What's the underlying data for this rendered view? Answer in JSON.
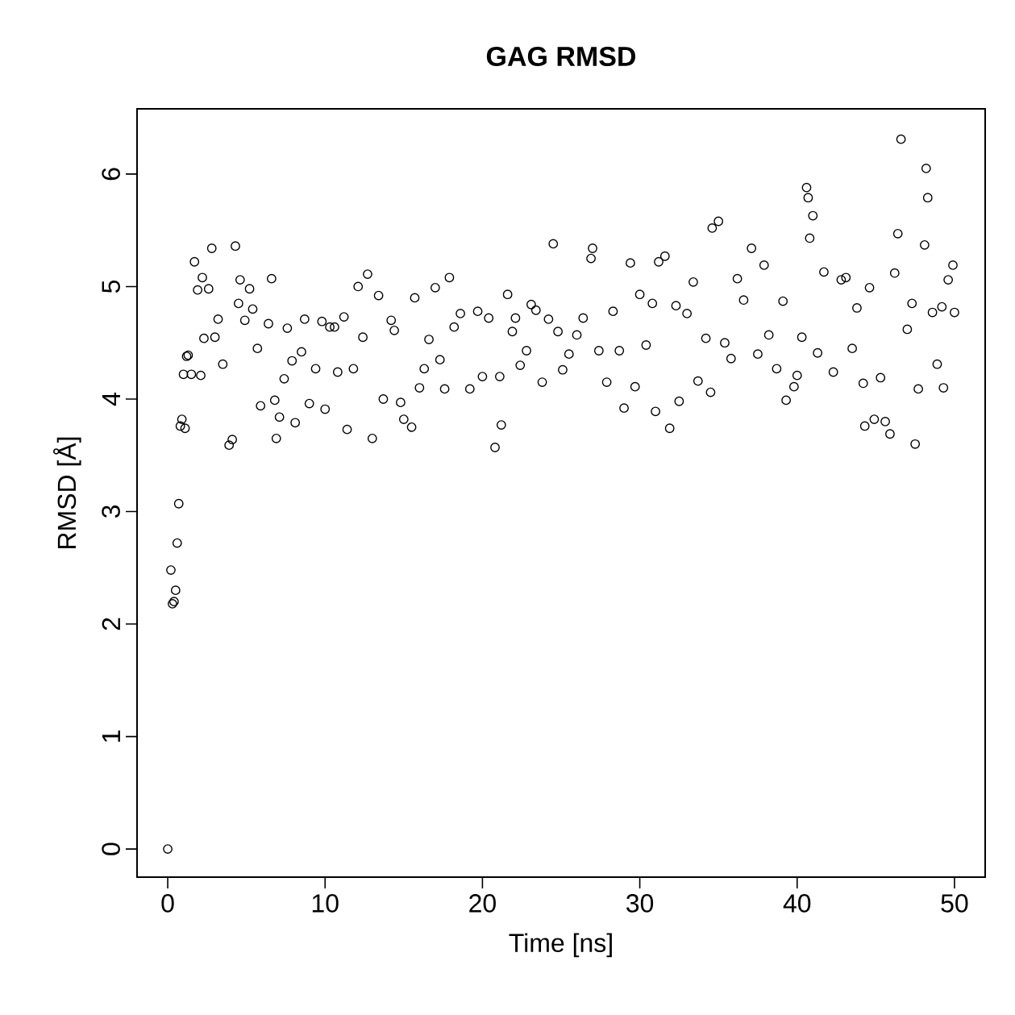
{
  "chart_data": {
    "type": "scatter",
    "title": "GAG RMSD",
    "xlabel": "Time [ns]",
    "ylabel": "RMSD [Å]",
    "xlim": [
      -1.95,
      51.95
    ],
    "ylim": [
      -0.25,
      6.58
    ],
    "xticks": [
      0,
      10,
      20,
      30,
      40,
      50
    ],
    "yticks": [
      0,
      1,
      2,
      3,
      4,
      5,
      6
    ],
    "marker": "circle",
    "series": [
      {
        "color": "#000000",
        "x": [
          0.0,
          0.2,
          0.3,
          0.4,
          0.5,
          0.6,
          0.7,
          0.8,
          0.9,
          1.0,
          1.1,
          1.2,
          1.3,
          1.5,
          1.7,
          1.9,
          2.1,
          2.2,
          2.3,
          2.6,
          2.8,
          3.0,
          3.2,
          3.5,
          3.9,
          4.1,
          4.3,
          4.5,
          4.6,
          4.9,
          5.2,
          5.4,
          5.7,
          5.9,
          6.4,
          6.6,
          6.8,
          6.9,
          7.1,
          7.4,
          7.6,
          7.9,
          8.1,
          8.5,
          8.7,
          9.0,
          9.4,
          9.8,
          10.0,
          10.3,
          10.6,
          10.8,
          11.2,
          11.4,
          11.8,
          12.1,
          12.4,
          12.7,
          13.0,
          13.4,
          13.7,
          14.2,
          14.4,
          14.8,
          15.0,
          15.5,
          15.7,
          16.0,
          16.3,
          16.6,
          17.0,
          17.3,
          17.6,
          17.9,
          18.2,
          18.6,
          19.2,
          19.7,
          20.0,
          20.4,
          20.8,
          21.1,
          21.2,
          21.6,
          21.9,
          22.1,
          22.4,
          22.8,
          23.1,
          23.4,
          23.8,
          24.2,
          24.5,
          24.8,
          25.1,
          25.5,
          26.0,
          26.4,
          26.9,
          27.0,
          27.4,
          27.9,
          28.3,
          28.7,
          29.0,
          29.4,
          29.7,
          30.0,
          30.4,
          30.8,
          31.0,
          31.2,
          31.6,
          31.9,
          32.3,
          32.5,
          33.0,
          33.4,
          33.7,
          34.2,
          34.5,
          34.6,
          35.0,
          35.4,
          35.8,
          36.2,
          36.6,
          37.1,
          37.5,
          37.9,
          38.2,
          38.7,
          39.1,
          39.3,
          39.8,
          40.0,
          40.3,
          40.6,
          40.7,
          40.8,
          41.0,
          41.3,
          41.7,
          42.3,
          42.8,
          43.1,
          43.5,
          43.8,
          44.2,
          44.3,
          44.6,
          44.9,
          45.3,
          45.6,
          45.9,
          46.2,
          46.4,
          46.6,
          47.0,
          47.3,
          47.5,
          47.7,
          48.1,
          48.2,
          48.3,
          48.6,
          48.9,
          49.2,
          49.3,
          49.6,
          49.9,
          50.0
        ],
        "values": [
          0.0,
          2.48,
          2.18,
          2.2,
          2.3,
          2.72,
          3.07,
          3.76,
          3.82,
          4.22,
          3.74,
          4.38,
          4.39,
          4.22,
          5.22,
          4.97,
          4.21,
          5.08,
          4.54,
          4.98,
          5.34,
          4.55,
          4.71,
          4.31,
          3.59,
          3.64,
          5.36,
          4.85,
          5.06,
          4.7,
          4.98,
          4.8,
          4.45,
          3.94,
          4.67,
          5.07,
          3.99,
          3.65,
          3.84,
          4.18,
          4.63,
          4.34,
          3.79,
          4.42,
          4.71,
          3.96,
          4.27,
          4.69,
          3.91,
          4.64,
          4.64,
          4.24,
          4.73,
          3.73,
          4.27,
          5.0,
          4.55,
          5.11,
          3.65,
          4.92,
          4.0,
          4.7,
          4.61,
          3.97,
          3.82,
          3.75,
          4.9,
          4.1,
          4.27,
          4.53,
          4.99,
          4.35,
          4.09,
          5.08,
          4.64,
          4.76,
          4.09,
          4.78,
          4.2,
          4.72,
          3.57,
          4.2,
          3.77,
          4.93,
          4.6,
          4.72,
          4.3,
          4.43,
          4.84,
          4.79,
          4.15,
          4.71,
          5.38,
          4.6,
          4.26,
          4.4,
          4.57,
          4.72,
          5.25,
          5.34,
          4.43,
          4.15,
          4.78,
          4.43,
          3.92,
          5.21,
          4.11,
          4.93,
          4.48,
          4.85,
          3.89,
          5.22,
          5.27,
          3.74,
          4.83,
          3.98,
          4.76,
          5.04,
          4.16,
          4.54,
          4.06,
          5.52,
          5.58,
          4.5,
          4.36,
          5.07,
          4.88,
          5.34,
          4.4,
          5.19,
          4.57,
          4.27,
          4.87,
          3.99,
          4.11,
          4.21,
          4.55,
          5.88,
          5.79,
          5.43,
          5.63,
          4.41,
          5.13,
          4.24,
          5.06,
          5.08,
          4.45,
          4.81,
          4.14,
          3.76,
          4.99,
          3.82,
          4.19,
          3.8,
          3.69,
          5.12,
          5.47,
          6.31,
          4.62,
          4.85,
          3.6,
          4.09,
          5.37,
          6.05,
          5.79,
          4.77,
          4.31,
          4.82,
          4.1,
          5.06,
          5.19,
          4.77
        ]
      }
    ]
  }
}
